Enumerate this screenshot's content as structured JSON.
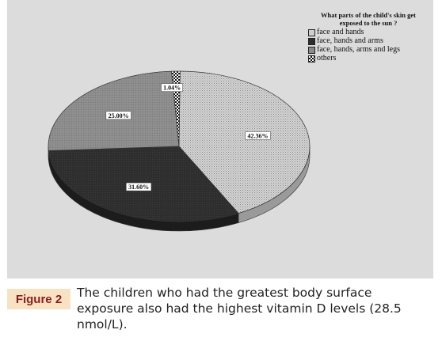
{
  "chart_data": {
    "type": "pie",
    "title": "What parts of the child's skin get exposed to the sun ?",
    "slices": [
      {
        "label": "face and hands",
        "value": 42.36,
        "display": "42.36%",
        "pattern": "light-dots"
      },
      {
        "label": "face, hands and arms",
        "value": 31.6,
        "display": "31.60%",
        "pattern": "dark"
      },
      {
        "label": "face, hands, arms and legs",
        "value": 25.0,
        "display": "25.00%",
        "pattern": "grey"
      },
      {
        "label": "others",
        "value": 1.04,
        "display": "1.04%",
        "pattern": "checker"
      }
    ],
    "legend_position": "top-right",
    "style": "3d-tilted"
  },
  "legend": {
    "title": "What parts of the child's skin get exposed to the sun ?",
    "items": [
      "face and hands",
      "face, hands and arms",
      "face, hands, arms and legs",
      "others"
    ]
  },
  "caption": {
    "label": "Figure 2",
    "text": "The children who had the greatest body surface exposure also had the highest vitamin D levels (28.5 nmol/L)."
  },
  "colors": {
    "panel_background": "#dcdcdc",
    "caption_label_background": "#f8e2c4",
    "caption_label_text": "#8b1c1c"
  }
}
